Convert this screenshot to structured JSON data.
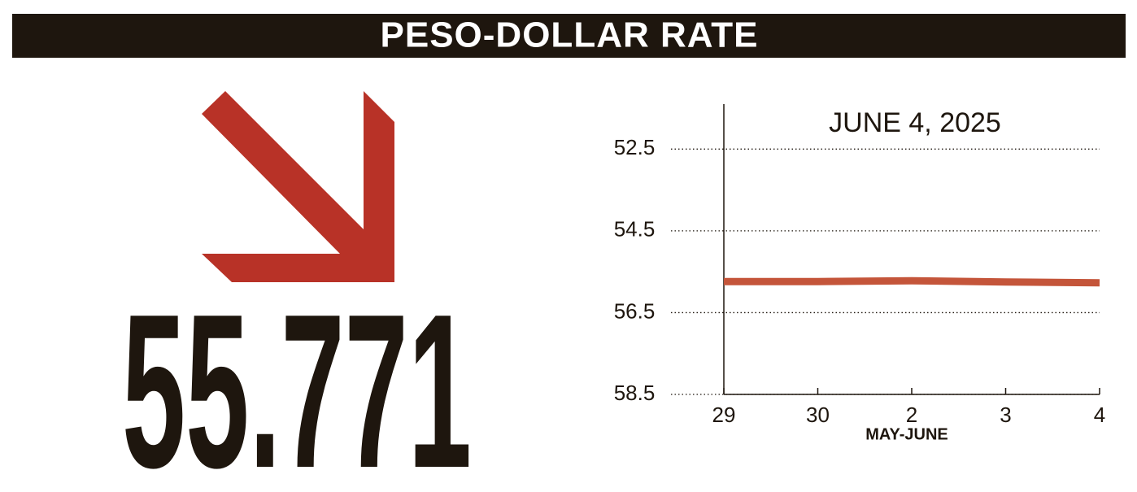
{
  "title": "PESO-DOLLAR RATE",
  "headline_value": 55.771,
  "chart_data": {
    "type": "line",
    "annotation": "JUNE 4, 2025",
    "x_label": "MAY-JUNE",
    "categories": [
      "29",
      "30",
      "2",
      "3",
      "4"
    ],
    "series": [
      {
        "color": "#c4553a",
        "values": [
          55.74,
          55.74,
          55.72,
          55.75,
          55.771
        ]
      }
    ],
    "ylim": [
      51.4,
      58.5
    ],
    "y_inverted": true,
    "yticks": [
      52.5,
      54.5,
      56.5,
      58.5
    ],
    "grid": true
  }
}
